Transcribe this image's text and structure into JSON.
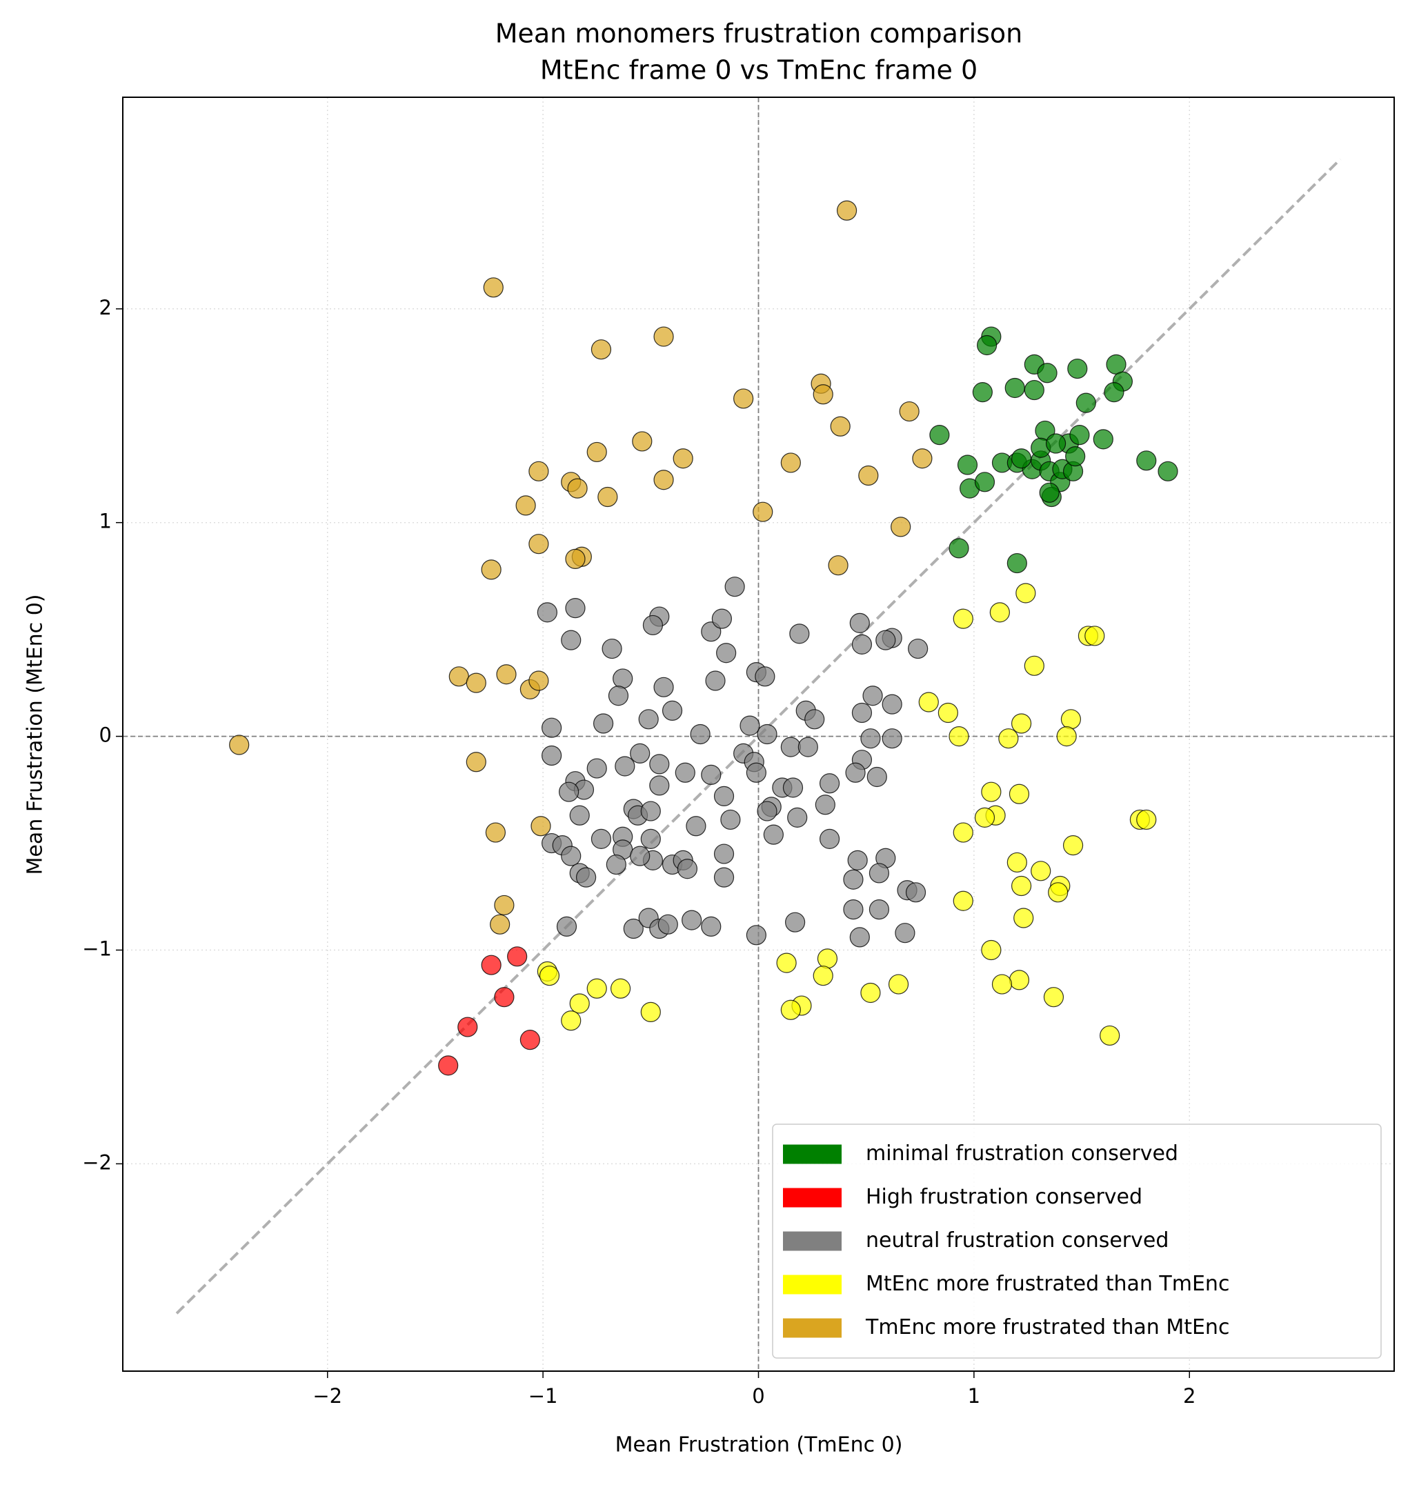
{
  "chart_data": {
    "type": "scatter",
    "title": "Mean monomers frustration comparison",
    "subtitle": "MtEnc frame 0 vs TmEnc frame 0",
    "x_label": "Mean Frustration (TmEnc 0)",
    "y_label": "Mean Frustration (MtEnc 0)",
    "xlim": [
      -2.95,
      2.95
    ],
    "ylim": [
      -2.97,
      2.99
    ],
    "xticks": [
      {
        "value": -2,
        "label": "−2"
      },
      {
        "value": -1,
        "label": "−1"
      },
      0,
      1,
      2
    ],
    "yticks": [
      {
        "value": -2,
        "label": "−2"
      },
      {
        "value": -1,
        "label": "−1"
      },
      0,
      1,
      2
    ],
    "grid": true,
    "zero_lines": true,
    "identity_line": [
      -2.7,
      2.7
    ],
    "legend": "lower right",
    "series": [
      {
        "name": "minimal frustration conserved",
        "color": "green",
        "x": [
          1.08,
          1.06,
          1.28,
          1.34,
          1.48,
          1.66,
          1.69,
          1.65,
          1.52,
          1.28,
          1.19,
          1.04,
          0.84,
          1.6,
          0.97,
          0.98,
          1.05,
          1.13,
          1.2,
          1.27,
          1.31,
          1.35,
          1.4,
          1.44,
          1.49,
          1.33,
          1.31,
          1.41,
          1.46,
          1.36,
          1.35,
          1.47,
          1.8,
          1.9,
          0.93,
          1.2,
          1.22,
          1.38
        ],
        "y": [
          1.87,
          1.83,
          1.74,
          1.7,
          1.72,
          1.74,
          1.66,
          1.61,
          1.56,
          1.62,
          1.63,
          1.61,
          1.41,
          1.39,
          1.27,
          1.16,
          1.19,
          1.28,
          1.28,
          1.25,
          1.29,
          1.24,
          1.19,
          1.37,
          1.41,
          1.43,
          1.35,
          1.25,
          1.24,
          1.12,
          1.14,
          1.31,
          1.29,
          1.24,
          0.88,
          0.81,
          1.3,
          1.37
        ]
      },
      {
        "name": "High frustration conserved",
        "color": "red",
        "x": [
          -1.44,
          -1.35,
          -1.24,
          -1.18,
          -1.12,
          -1.06
        ],
        "y": [
          -1.54,
          -1.36,
          -1.07,
          -1.22,
          -1.03,
          -1.42
        ]
      },
      {
        "name": "neutral frustration conserved",
        "color": "gray",
        "x": [
          -0.11,
          -0.85,
          -0.98,
          -0.46,
          -0.49,
          -0.87,
          -0.22,
          -0.17,
          -0.15,
          -0.68,
          0.19,
          0.47,
          0.62,
          0.59,
          0.48,
          0.74,
          -0.63,
          -0.44,
          -0.65,
          -0.2,
          -0.01,
          0.03,
          0.53,
          -0.4,
          0.62,
          0.48,
          0.22,
          0.26,
          -0.72,
          -0.96,
          -0.51,
          -0.27,
          -0.04,
          0.04,
          -0.96,
          -0.55,
          -0.07,
          -0.75,
          -0.34,
          -0.22,
          -0.02,
          -0.01,
          -0.85,
          -0.62,
          -0.46,
          0.15,
          0.23,
          0.52,
          0.62,
          0.48,
          0.55,
          0.45,
          0.11,
          0.16,
          0.33,
          -0.81,
          -0.46,
          -0.16,
          -0.88,
          -0.58,
          -0.56,
          -0.5,
          -0.83,
          0.06,
          0.04,
          0.31,
          0.18,
          -0.73,
          -0.29,
          -0.13,
          0.07,
          0.33,
          -0.96,
          -0.91,
          -0.87,
          -0.63,
          -0.5,
          -0.63,
          -0.66,
          -0.83,
          -0.8,
          -0.4,
          -0.35,
          -0.16,
          -0.49,
          -0.55,
          -0.33,
          -0.16,
          0.46,
          0.44,
          0.59,
          0.56,
          0.56,
          0.69,
          0.73,
          0.44,
          0.47,
          0.68,
          -0.89,
          -0.58,
          -0.51,
          -0.46,
          -0.42,
          -0.31,
          -0.22,
          -0.01,
          0.17
        ],
        "y": [
          0.7,
          0.6,
          0.58,
          0.56,
          0.52,
          0.45,
          0.49,
          0.55,
          0.39,
          0.41,
          0.48,
          0.53,
          0.46,
          0.45,
          0.43,
          0.41,
          0.27,
          0.23,
          0.19,
          0.26,
          0.3,
          0.28,
          0.19,
          0.12,
          0.15,
          0.11,
          0.12,
          0.08,
          0.06,
          0.04,
          0.08,
          0.01,
          0.05,
          0.01,
          -0.09,
          -0.08,
          -0.08,
          -0.15,
          -0.17,
          -0.18,
          -0.12,
          -0.17,
          -0.21,
          -0.14,
          -0.13,
          -0.05,
          -0.05,
          -0.01,
          -0.01,
          -0.11,
          -0.19,
          -0.17,
          -0.24,
          -0.24,
          -0.22,
          -0.25,
          -0.23,
          -0.28,
          -0.26,
          -0.34,
          -0.37,
          -0.35,
          -0.37,
          -0.33,
          -0.35,
          -0.32,
          -0.38,
          -0.48,
          -0.42,
          -0.39,
          -0.46,
          -0.48,
          -0.5,
          -0.51,
          -0.56,
          -0.47,
          -0.48,
          -0.53,
          -0.6,
          -0.64,
          -0.66,
          -0.6,
          -0.58,
          -0.55,
          -0.58,
          -0.56,
          -0.62,
          -0.66,
          -0.58,
          -0.67,
          -0.57,
          -0.64,
          -0.81,
          -0.72,
          -0.73,
          -0.81,
          -0.94,
          -0.92,
          -0.89,
          -0.9,
          -0.85,
          -0.9,
          -0.88,
          -0.86,
          -0.89,
          -0.93,
          -0.87
        ]
      },
      {
        "name": "MtEnc more frustrated than TmEnc",
        "color": "yellow",
        "x": [
          1.24,
          0.95,
          1.12,
          1.53,
          1.56,
          1.28,
          0.79,
          0.88,
          0.93,
          1.22,
          1.16,
          1.45,
          1.43,
          1.08,
          1.21,
          1.1,
          1.05,
          1.77,
          1.8,
          1.46,
          0.95,
          1.2,
          1.31,
          1.22,
          1.4,
          1.39,
          1.23,
          0.95,
          1.08,
          0.32,
          1.21,
          1.13,
          1.37,
          1.63,
          0.13,
          0.3,
          0.52,
          0.65,
          0.2,
          0.15,
          -0.98,
          -0.97,
          -0.83,
          -0.87,
          -0.75,
          -0.64,
          -0.5
        ],
        "y": [
          0.67,
          0.55,
          0.58,
          0.47,
          0.47,
          0.33,
          0.16,
          0.11,
          0.0,
          0.06,
          -0.01,
          0.08,
          0.0,
          -0.26,
          -0.27,
          -0.37,
          -0.38,
          -0.39,
          -0.39,
          -0.51,
          -0.45,
          -0.59,
          -0.63,
          -0.7,
          -0.7,
          -0.73,
          -0.85,
          -0.77,
          -1.0,
          -1.04,
          -1.14,
          -1.16,
          -1.22,
          -1.4,
          -1.06,
          -1.12,
          -1.2,
          -1.16,
          -1.26,
          -1.28,
          -1.1,
          -1.12,
          -1.25,
          -1.33,
          -1.18,
          -1.18,
          -1.29
        ]
      },
      {
        "name": "TmEnc more frustrated than MtEnc",
        "color": "goldenrod",
        "x": [
          0.41,
          -1.23,
          -0.44,
          -0.73,
          0.29,
          -0.07,
          0.3,
          0.38,
          0.7,
          -0.54,
          -0.75,
          -0.35,
          -1.02,
          -0.44,
          -0.87,
          -0.7,
          -0.84,
          0.51,
          0.76,
          0.15,
          0.02,
          -1.08,
          -1.02,
          0.66,
          -0.82,
          -0.85,
          0.37,
          -1.24,
          -1.39,
          -1.31,
          -1.17,
          -1.06,
          -1.02,
          -2.41,
          -1.31,
          -1.22,
          -1.01,
          -1.18,
          -1.2
        ],
        "y": [
          2.46,
          2.1,
          1.87,
          1.81,
          1.65,
          1.58,
          1.6,
          1.45,
          1.52,
          1.38,
          1.33,
          1.3,
          1.24,
          1.2,
          1.19,
          1.12,
          1.16,
          1.22,
          1.3,
          1.28,
          1.05,
          1.08,
          0.9,
          0.98,
          0.84,
          0.83,
          0.8,
          0.78,
          0.28,
          0.25,
          0.29,
          0.22,
          0.26,
          -0.04,
          -0.12,
          -0.45,
          -0.42,
          -0.79,
          -0.88
        ]
      }
    ]
  }
}
